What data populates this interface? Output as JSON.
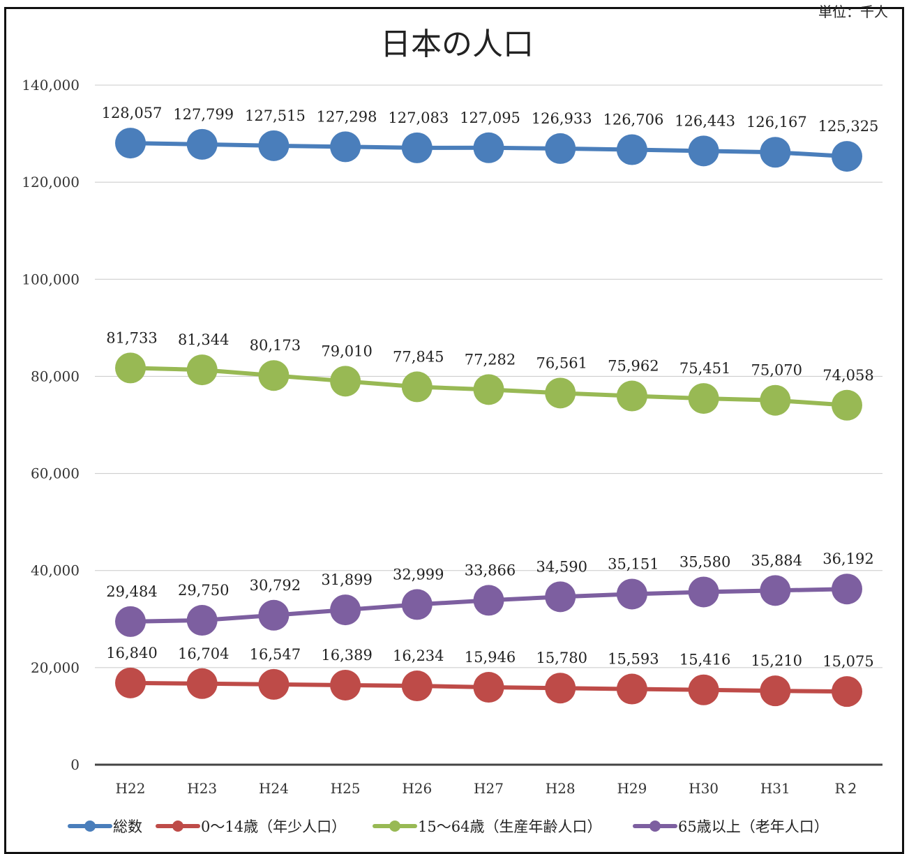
{
  "unit_note": "単位：千人",
  "chart_data": {
    "type": "line",
    "title": "日本の人口",
    "xlabel": "",
    "ylabel": "",
    "ylim": [
      0,
      140000
    ],
    "yticks": [
      0,
      20000,
      40000,
      60000,
      80000,
      100000,
      120000,
      140000
    ],
    "ytick_labels": [
      "0",
      "20,000",
      "40,000",
      "60,000",
      "80,000",
      "100,000",
      "120,000",
      "140,000"
    ],
    "grid": true,
    "legend_position": "bottom",
    "categories": [
      "H22",
      "H23",
      "H24",
      "H25",
      "H26",
      "H27",
      "H28",
      "H29",
      "H30",
      "H31",
      "R２"
    ],
    "series": [
      {
        "name": "総数",
        "color": "#4a7ebb",
        "values": [
          128057,
          127799,
          127515,
          127298,
          127083,
          127095,
          126933,
          126706,
          126443,
          126167,
          125325
        ],
        "labels": [
          "128,057",
          "127,799",
          "127,515",
          "127,298",
          "127,083",
          "127,095",
          "126,933",
          "126,706",
          "126,443",
          "126,167",
          "125,325"
        ]
      },
      {
        "name": "0～14歳（年少人口）",
        "color": "#be4b48",
        "values": [
          16840,
          16704,
          16547,
          16389,
          16234,
          15946,
          15780,
          15593,
          15416,
          15210,
          15075
        ],
        "labels": [
          "16,840",
          "16,704",
          "16,547",
          "16,389",
          "16,234",
          "15,946",
          "15,780",
          "15,593",
          "15,416",
          "15,210",
          "15,075"
        ]
      },
      {
        "name": "15～64歳（生産年齢人口）",
        "color": "#98b954",
        "values": [
          81733,
          81344,
          80173,
          79010,
          77845,
          77282,
          76561,
          75962,
          75451,
          75070,
          74058
        ],
        "labels": [
          "81,733",
          "81,344",
          "80,173",
          "79,010",
          "77,845",
          "77,282",
          "76,561",
          "75,962",
          "75,451",
          "75,070",
          "74,058"
        ]
      },
      {
        "name": "65歳以上（老年人口）",
        "color": "#7d5fa0",
        "values": [
          29484,
          29750,
          30792,
          31899,
          32999,
          33866,
          34590,
          35151,
          35580,
          35884,
          36192
        ],
        "labels": [
          "29,484",
          "29,750",
          "30,792",
          "31,899",
          "32,999",
          "33,866",
          "34,590",
          "35,151",
          "35,580",
          "35,884",
          "36,192"
        ]
      }
    ]
  }
}
